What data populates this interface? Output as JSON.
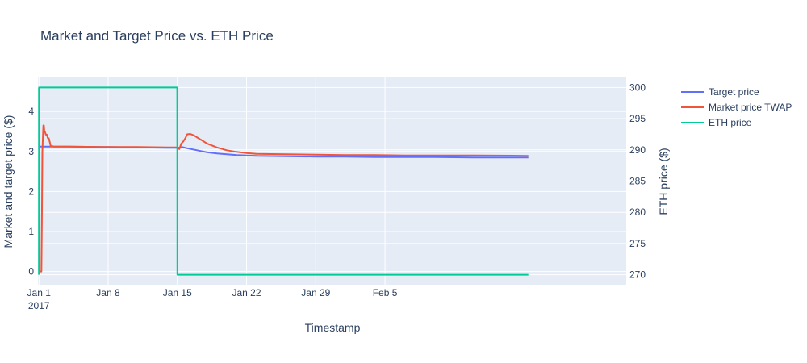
{
  "chart_data": {
    "type": "line",
    "title": "Market and Target Price vs. ETH Price",
    "xlabel": "Timestamp",
    "ylabel_left": "Market and target price ($)",
    "ylabel_right": "ETH price ($)",
    "x_range_days": [
      -0.1,
      59.4
    ],
    "x_ticks": [
      {
        "day": 0,
        "label": "Jan 1",
        "sublabel": "2017"
      },
      {
        "day": 7,
        "label": "Jan 8"
      },
      {
        "day": 14,
        "label": "Jan 15"
      },
      {
        "day": 21,
        "label": "Jan 22"
      },
      {
        "day": 28,
        "label": "Jan 29"
      },
      {
        "day": 35,
        "label": "Feb 5"
      }
    ],
    "y_left": {
      "range": [
        -0.33,
        4.85
      ],
      "ticks": [
        0,
        1,
        2,
        3,
        4
      ]
    },
    "y_right": {
      "range": [
        268.4,
        301.6
      ],
      "ticks": [
        270,
        275,
        280,
        285,
        290,
        295,
        300
      ]
    },
    "grid": true,
    "legend_position": "top-right",
    "series": [
      {
        "name": "Target price",
        "axis": "left",
        "color": "#636efa",
        "x_days": [
          0.0,
          0.1,
          0.5,
          1,
          3,
          7,
          10,
          13,
          14,
          14.5,
          15,
          16,
          17,
          18,
          19,
          20,
          21,
          22,
          25,
          28,
          31,
          34,
          37,
          40,
          44,
          49.5
        ],
        "y": [
          3.15,
          3.12,
          3.12,
          3.12,
          3.12,
          3.11,
          3.1,
          3.09,
          3.09,
          3.11,
          3.08,
          3.03,
          2.98,
          2.95,
          2.93,
          2.91,
          2.9,
          2.89,
          2.88,
          2.87,
          2.87,
          2.86,
          2.86,
          2.86,
          2.85,
          2.85
        ]
      },
      {
        "name": "Market price TWAP",
        "axis": "left",
        "color": "#ef553b",
        "x_days": [
          0.0,
          0.25,
          0.3,
          0.35,
          0.45,
          0.5,
          0.55,
          0.6,
          0.7,
          0.8,
          0.9,
          1.0,
          1.2,
          1.4,
          1.5,
          3,
          7,
          10,
          13,
          14,
          14.2,
          14.4,
          14.6,
          14.8,
          15,
          15.3,
          15.7,
          16,
          17,
          18,
          19,
          20,
          21,
          22,
          25,
          28,
          31,
          34,
          37,
          40,
          44,
          49.5
        ],
        "y": [
          0.0,
          0.0,
          1.3,
          3.0,
          3.65,
          3.65,
          3.5,
          3.5,
          3.42,
          3.42,
          3.33,
          3.33,
          3.13,
          3.13,
          3.12,
          3.12,
          3.11,
          3.11,
          3.1,
          3.1,
          3.06,
          3.2,
          3.25,
          3.33,
          3.43,
          3.44,
          3.4,
          3.35,
          3.2,
          3.1,
          3.03,
          2.99,
          2.96,
          2.94,
          2.93,
          2.92,
          2.91,
          2.91,
          2.9,
          2.9,
          2.9,
          2.89
        ]
      },
      {
        "name": "ETH price",
        "axis": "right",
        "color": "#00cc96",
        "x_days": [
          0.0,
          0.01,
          13.99,
          14.0,
          49.5
        ],
        "y": [
          270,
          300,
          300,
          270,
          270
        ]
      }
    ]
  }
}
